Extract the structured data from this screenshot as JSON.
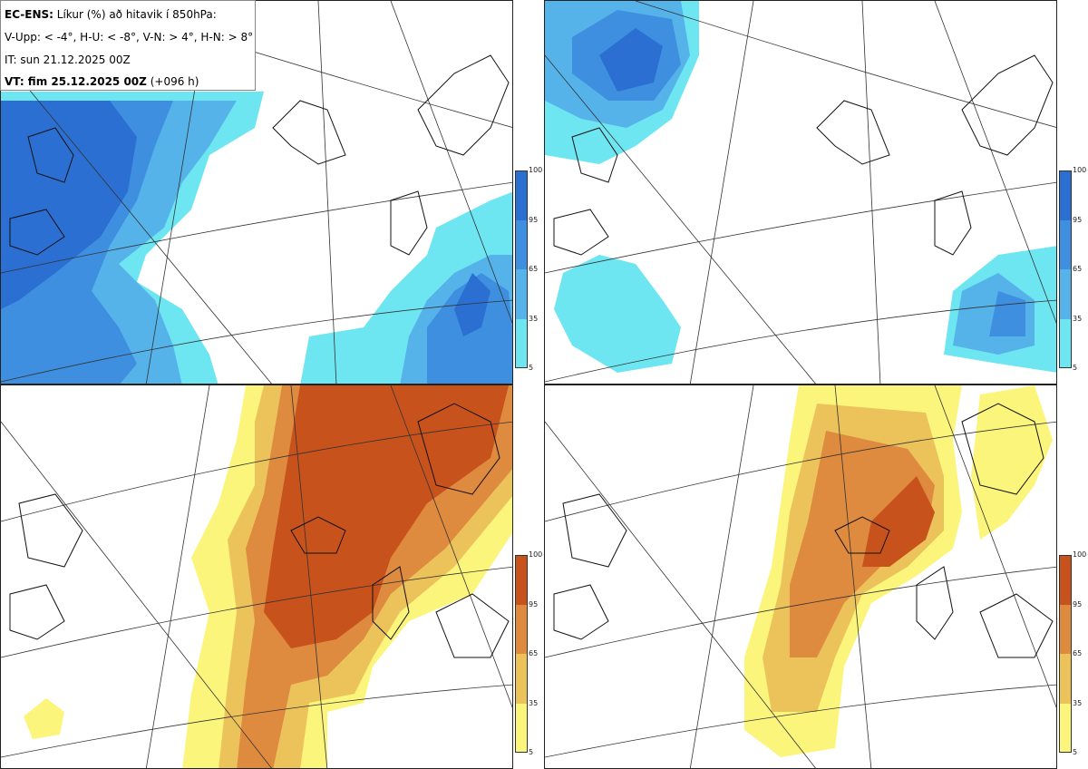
{
  "title": {
    "model_label": "EC-ENS:",
    "description": "Líkur (%) að hitavik í 850hPa:",
    "categories_line": "V-Upp: < -4°, H-U: < -8°, V-N: > 4°, H-N: > 8°",
    "initial_time": "IT: sun 21.12.2025 00Z",
    "valid_time_label": "VT: fim 25.12.2025 00Z",
    "forecast_hour": "(+096 h)"
  },
  "panels": [
    {
      "id": "V-Upp",
      "threshold": "< -4°",
      "palette": "blue"
    },
    {
      "id": "H-U",
      "threshold": "< -8°",
      "palette": "blue"
    },
    {
      "id": "V-N",
      "threshold": "> 4°",
      "palette": "orange"
    },
    {
      "id": "H-N",
      "threshold": "> 8°",
      "palette": "orange"
    }
  ],
  "colorbar": {
    "levels": [
      "100",
      "95",
      "65",
      "35",
      "5"
    ],
    "blue_colors": [
      "#2a6fd1",
      "#3f8fe0",
      "#55b3ea",
      "#6ee6f2"
    ],
    "orange_colors": [
      "#c8521c",
      "#de8a3f",
      "#ecc35a",
      "#fbf57c"
    ]
  }
}
